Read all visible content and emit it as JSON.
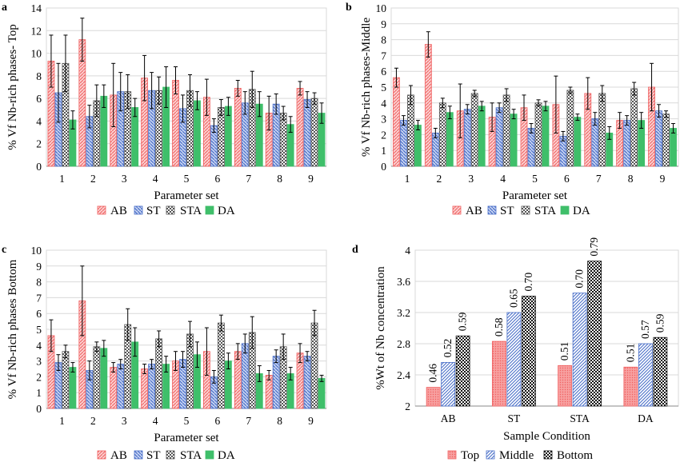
{
  "colors": {
    "AB": "#f06060",
    "ST": "#4a6fc8",
    "STA": "#555555",
    "DA": "#3fbf6a",
    "Top": "#f06060",
    "Middle": "#4a6fc8",
    "Bottom": "#111111"
  },
  "chart_data": [
    {
      "panel": "a",
      "type": "bar",
      "ylabel": "% Vf Nb-rich phases- Top",
      "xlabel": "Parameter set",
      "ylim": [
        0,
        14
      ],
      "ystep": 2,
      "categories": [
        "1",
        "2",
        "3",
        "4",
        "5",
        "6",
        "7",
        "8",
        "9"
      ],
      "series": [
        {
          "name": "AB",
          "values": [
            9.3,
            11.2,
            6.3,
            7.8,
            7.6,
            6.1,
            6.9,
            4.7,
            6.9
          ],
          "errors": [
            2.3,
            1.9,
            2.8,
            2.0,
            1.2,
            1.6,
            0.7,
            1.5,
            0.6
          ]
        },
        {
          "name": "ST",
          "values": [
            6.5,
            4.4,
            6.6,
            6.7,
            5.1,
            3.6,
            5.6,
            5.5,
            5.9
          ],
          "errors": [
            2.6,
            1.0,
            1.7,
            1.6,
            1.2,
            0.6,
            1.0,
            0.9,
            0.7
          ]
        },
        {
          "name": "STA",
          "values": [
            9.1,
            5.8,
            6.6,
            6.7,
            6.7,
            5.2,
            6.8,
            4.7,
            6.0
          ],
          "errors": [
            2.5,
            1.4,
            1.5,
            1.2,
            1.4,
            0.7,
            1.6,
            0.6,
            0.5
          ]
        },
        {
          "name": "DA",
          "values": [
            4.1,
            6.2,
            5.2,
            7.0,
            5.8,
            5.3,
            5.5,
            3.7,
            4.7
          ],
          "errors": [
            0.8,
            1.0,
            0.8,
            1.8,
            0.8,
            0.8,
            1.1,
            0.7,
            0.9
          ]
        }
      ]
    },
    {
      "panel": "b",
      "type": "bar",
      "ylabel": "% Vf Nb-rich phases-Middle",
      "xlabel": "Parameter set",
      "ylim": [
        0,
        10
      ],
      "ystep": 1,
      "categories": [
        "1",
        "2",
        "3",
        "4",
        "5",
        "6",
        "7",
        "8",
        "9"
      ],
      "series": [
        {
          "name": "AB",
          "values": [
            5.6,
            7.7,
            3.5,
            3.1,
            3.7,
            3.9,
            4.6,
            2.9,
            5.0
          ],
          "errors": [
            0.6,
            0.8,
            1.7,
            0.9,
            0.8,
            1.8,
            1.0,
            0.5,
            1.5
          ]
        },
        {
          "name": "ST",
          "values": [
            2.9,
            2.1,
            3.6,
            3.7,
            2.4,
            1.9,
            3.0,
            2.9,
            3.5
          ],
          "errors": [
            0.3,
            0.3,
            0.3,
            0.3,
            0.3,
            0.3,
            0.4,
            0.3,
            0.4
          ]
        },
        {
          "name": "STA",
          "values": [
            4.5,
            4.0,
            4.6,
            4.5,
            4.0,
            4.8,
            4.6,
            4.9,
            3.3
          ],
          "errors": [
            0.6,
            0.3,
            0.2,
            0.4,
            0.2,
            0.2,
            0.5,
            0.4,
            0.2
          ]
        },
        {
          "name": "DA",
          "values": [
            2.6,
            3.4,
            3.8,
            3.3,
            3.8,
            3.1,
            2.1,
            2.9,
            2.4
          ],
          "errors": [
            0.3,
            0.4,
            0.3,
            0.3,
            0.3,
            0.2,
            0.4,
            0.5,
            0.3
          ]
        }
      ]
    },
    {
      "panel": "c",
      "type": "bar",
      "ylabel": "% Vf Nb-rich phases Bottom",
      "xlabel": "Parameter set",
      "ylim": [
        0,
        10
      ],
      "ystep": 1,
      "categories": [
        "1",
        "2",
        "3",
        "4",
        "5",
        "6",
        "7",
        "8",
        "9"
      ],
      "series": [
        {
          "name": "AB",
          "values": [
            4.6,
            6.8,
            2.6,
            2.5,
            3.0,
            3.6,
            3.6,
            2.1,
            3.5
          ],
          "errors": [
            1.0,
            2.2,
            0.3,
            0.3,
            0.6,
            1.5,
            0.5,
            0.3,
            0.6
          ]
        },
        {
          "name": "ST",
          "values": [
            2.9,
            2.4,
            2.8,
            2.8,
            3.1,
            2.0,
            4.1,
            3.3,
            3.3
          ],
          "errors": [
            0.5,
            0.6,
            0.3,
            0.3,
            0.5,
            0.4,
            0.6,
            0.4,
            0.3
          ]
        },
        {
          "name": "STA",
          "values": [
            3.6,
            3.9,
            5.3,
            4.4,
            4.7,
            5.4,
            4.8,
            3.9,
            5.4
          ],
          "errors": [
            0.4,
            0.3,
            1.0,
            0.5,
            0.8,
            0.5,
            1.0,
            0.8,
            0.8
          ]
        },
        {
          "name": "DA",
          "values": [
            2.6,
            3.8,
            4.2,
            2.8,
            3.4,
            3.0,
            2.2,
            2.2,
            1.9
          ],
          "errors": [
            0.3,
            0.5,
            0.9,
            0.5,
            0.8,
            0.5,
            0.5,
            0.4,
            0.2
          ]
        }
      ]
    },
    {
      "panel": "d",
      "type": "bar",
      "ylabel": "%Wt of Nb concentration",
      "xlabel": "Sample Condition",
      "ylim": [
        2,
        4
      ],
      "ystep": 0.4,
      "tick_labels": [
        "2",
        "2.4",
        "2.8",
        "3.2",
        "3.6",
        "4"
      ],
      "categories": [
        "AB",
        "ST",
        "STA",
        "DA"
      ],
      "series": [
        {
          "name": "Top",
          "values": [
            2.24,
            2.83,
            2.52,
            2.5
          ],
          "labels": [
            "0.46",
            "0.58",
            "0.51",
            "0.51"
          ]
        },
        {
          "name": "Middle",
          "values": [
            2.56,
            3.2,
            3.45,
            2.8
          ],
          "labels": [
            "0.52",
            "0.65",
            "0.70",
            "0.57"
          ]
        },
        {
          "name": "Bottom",
          "values": [
            2.9,
            3.41,
            3.86,
            2.88
          ],
          "labels": [
            "0.59",
            "0.70",
            "0.79",
            "0.59"
          ]
        }
      ]
    }
  ]
}
